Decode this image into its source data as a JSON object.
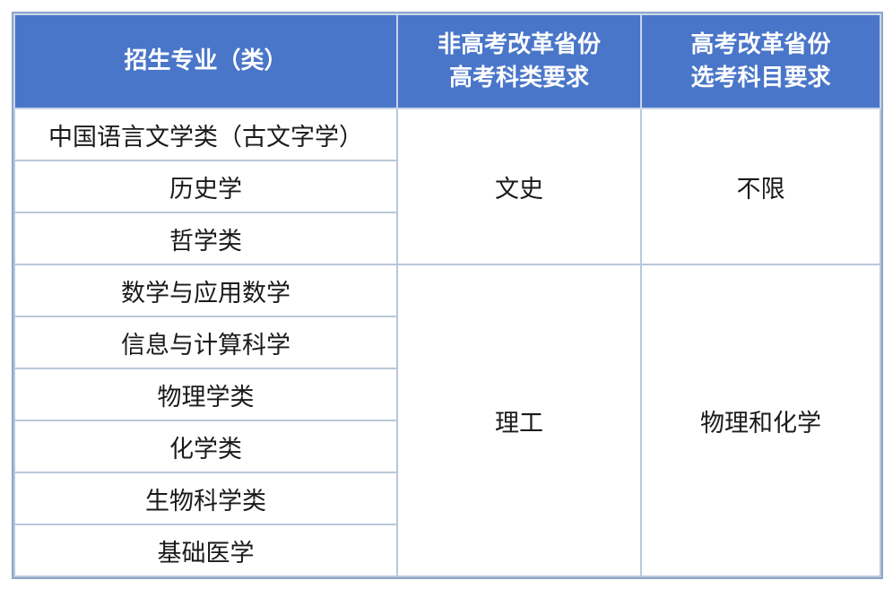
{
  "table": {
    "headers": [
      "招生专业（类）",
      "非高考改革省份\n高考科类要求",
      "高考改革省份\n选考科目要求"
    ],
    "header_lines": [
      [
        "招生专业（类）"
      ],
      [
        "非高考改革省份",
        "高考科类要求"
      ],
      [
        "高考改革省份",
        "选考科目要求"
      ]
    ],
    "majors": [
      "中国语言文学类（古文字学）",
      "历史学",
      "哲学类",
      "数学与应用数学",
      "信息与计算科学",
      "物理学类",
      "化学类",
      "生物科学类",
      "基础医学"
    ],
    "groups": [
      {
        "non_reform": "文史",
        "reform": "不限"
      },
      {
        "non_reform": "理工",
        "reform": "物理和化学"
      }
    ]
  },
  "colors": {
    "header_bg": "#4a76c9",
    "border": "#b9c7dc"
  }
}
